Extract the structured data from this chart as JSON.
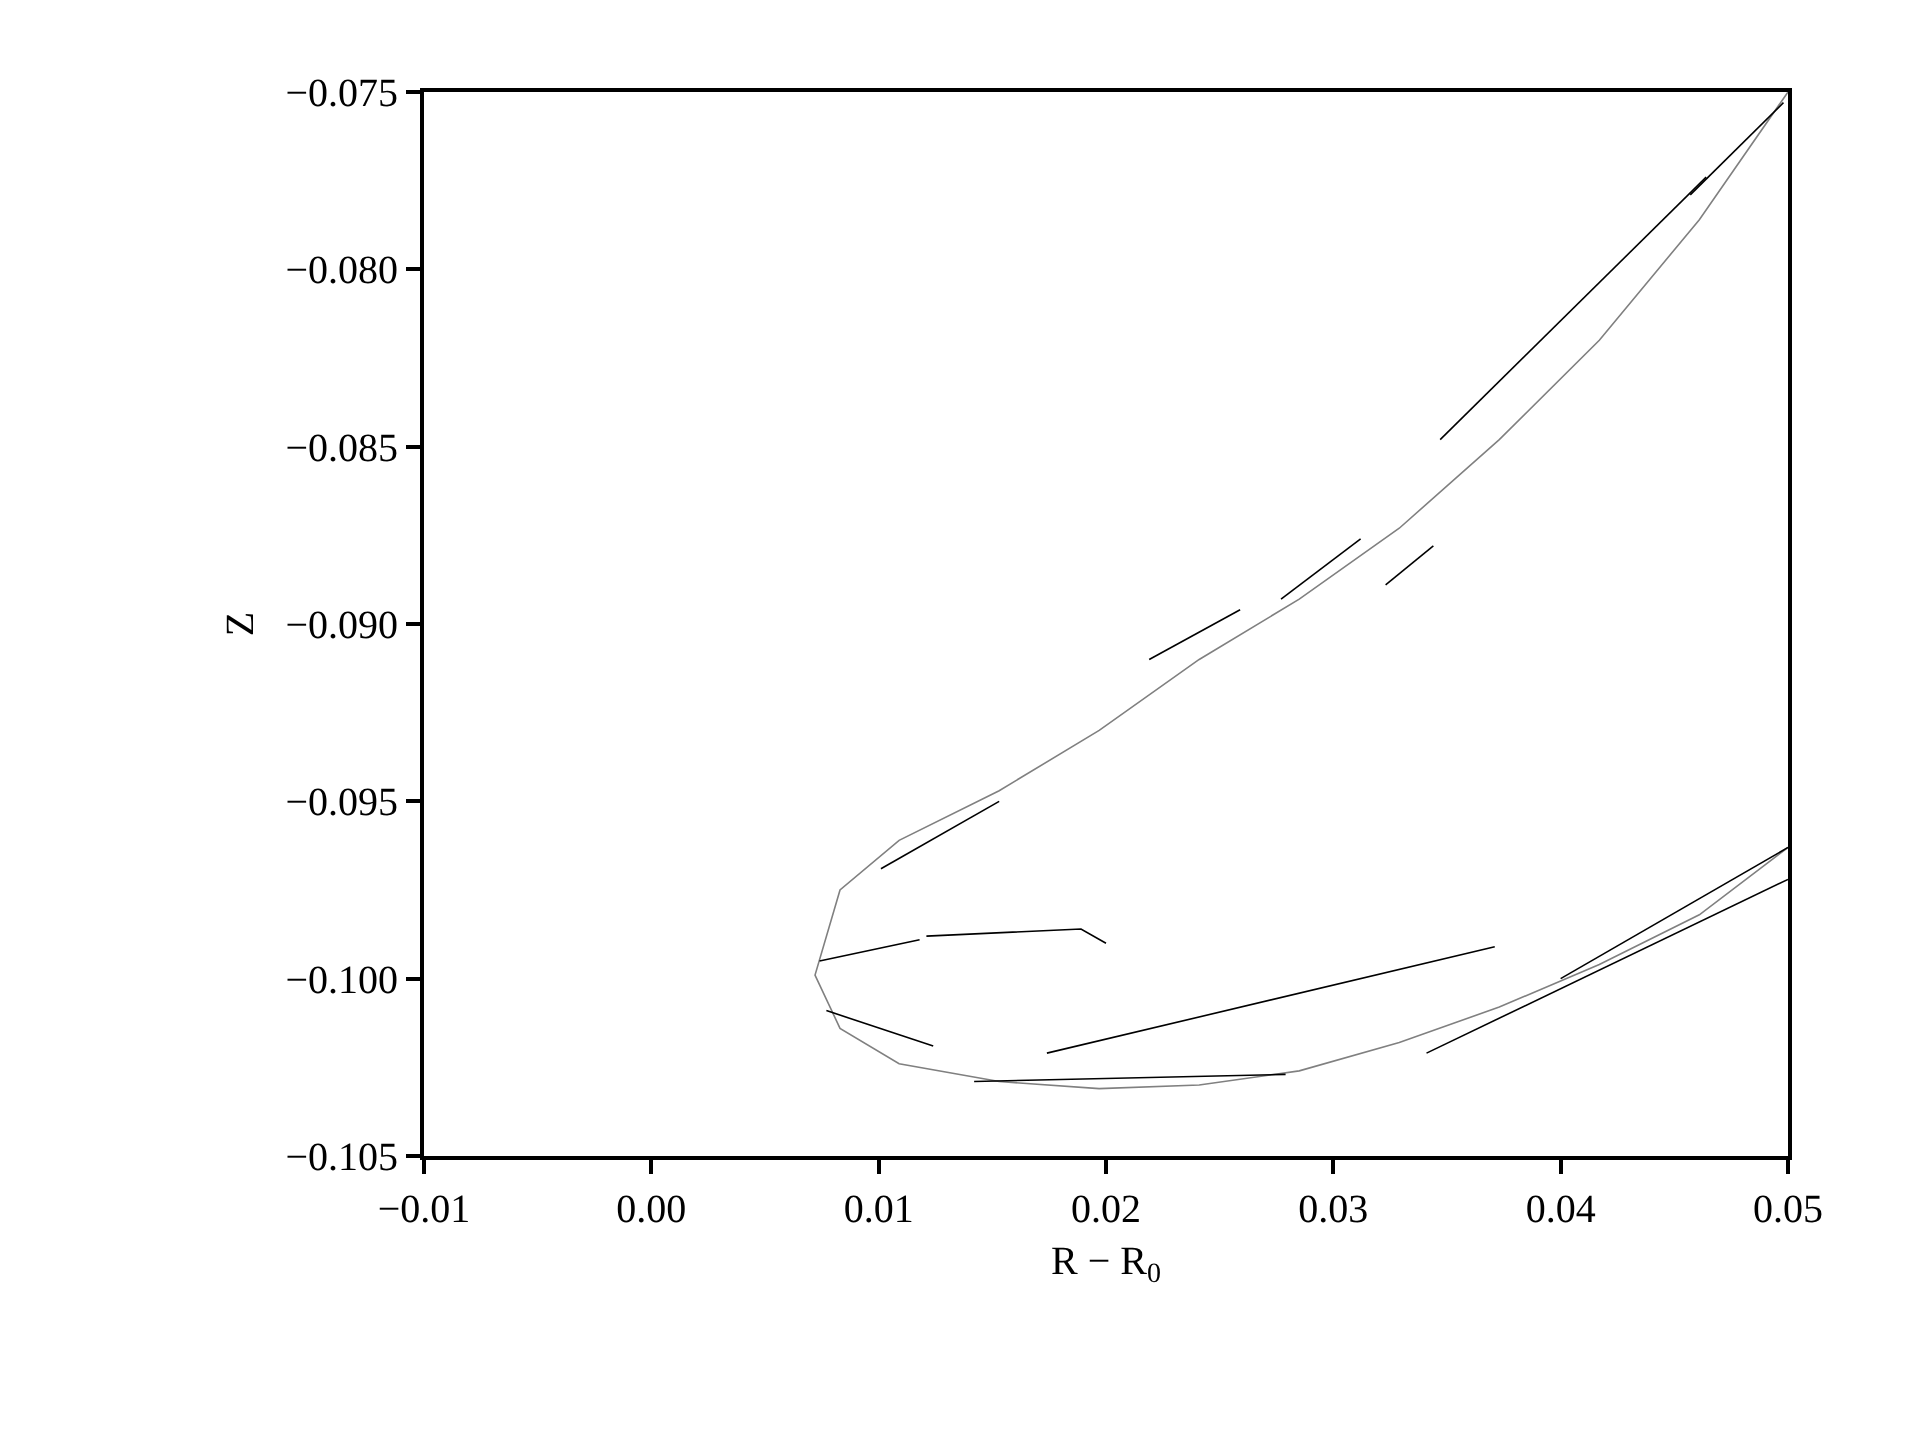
{
  "chart_data": {
    "type": "line",
    "xlabel": "R − R$_{0}$",
    "ylabel": "Z",
    "marker": "none",
    "line_style": "solid",
    "grid": false,
    "xlim": [
      -0.01,
      0.05
    ],
    "ylim": [
      -0.105,
      -0.075
    ],
    "xticks": [
      {
        "value": -0.01,
        "label": "−0.01"
      },
      {
        "value": 0,
        "label": "0.00"
      },
      {
        "value": 0.01,
        "label": "0.01"
      },
      {
        "value": 0.02,
        "label": "0.02"
      },
      {
        "value": 0.03,
        "label": "0.03"
      },
      {
        "value": 0.04,
        "label": "0.04"
      },
      {
        "value": 0.05,
        "label": "0.05"
      }
    ],
    "yticks": [
      {
        "value": -0.105,
        "label": "−0.105"
      },
      {
        "value": -0.1,
        "label": "−0.100"
      },
      {
        "value": -0.095,
        "label": "−0.095"
      },
      {
        "value": -0.09,
        "label": "−0.090"
      },
      {
        "value": -0.085,
        "label": "−0.085"
      },
      {
        "value": -0.08,
        "label": "−0.080"
      },
      {
        "value": -0.075,
        "label": "−0.075"
      }
    ],
    "series": [
      {
        "color": "#808080",
        "x": [
          0.05,
          0.0461,
          0.0417,
          0.0373,
          0.0329,
          0.0285,
          0.0241,
          0.0197,
          0.0153,
          0.0109,
          0.0083,
          0.0072,
          0.0083,
          0.0109,
          0.0153,
          0.0197,
          0.0241,
          0.0285,
          0.0329,
          0.0373,
          0.0417,
          0.0461,
          0.05
        ],
        "values": [
          -0.075,
          -0.0786,
          -0.082,
          -0.0848,
          -0.0873,
          -0.0893,
          -0.091,
          -0.093,
          -0.0947,
          -0.0961,
          -0.0975,
          -0.0999,
          -0.1014,
          -0.1024,
          -0.1029,
          -0.1031,
          -0.103,
          -0.1026,
          -0.1018,
          -0.1008,
          -0.0996,
          -0.0982,
          -0.0963
        ]
      },
      {
        "color": "#000000",
        "x": [
          0.0457,
          0.0498
        ],
        "values": [
          -0.0779,
          -0.0753
        ]
      },
      {
        "color": "#000000",
        "x": [
          0.0347,
          0.0464
        ],
        "values": [
          -0.0848,
          -0.0774
        ]
      },
      {
        "color": "#000000",
        "x": [
          0.0277,
          0.0312
        ],
        "values": [
          -0.0893,
          -0.0876
        ]
      },
      {
        "color": "#000000",
        "x": [
          0.0219,
          0.0259
        ],
        "values": [
          -0.091,
          -0.0896
        ]
      },
      {
        "color": "#000000",
        "x": [
          0.0101,
          0.0153
        ],
        "values": [
          -0.0969,
          -0.095
        ]
      },
      {
        "color": "#000000",
        "x": [
          0.0074,
          0.0118
        ],
        "values": [
          -0.0995,
          -0.0989
        ]
      },
      {
        "color": "#000000",
        "x": [
          0.0121,
          0.0189,
          0.02
        ],
        "values": [
          -0.0988,
          -0.0986,
          -0.099
        ]
      },
      {
        "color": "#000000",
        "x": [
          0.0174,
          0.0371
        ],
        "values": [
          -0.1021,
          -0.0991
        ]
      },
      {
        "color": "#000000",
        "x": [
          0.0077,
          0.0124
        ],
        "values": [
          -0.1009,
          -0.1019
        ]
      },
      {
        "color": "#000000",
        "x": [
          0.0142,
          0.0279
        ],
        "values": [
          -0.1029,
          -0.1027
        ]
      },
      {
        "color": "#000000",
        "x": [
          0.0341,
          0.05
        ],
        "values": [
          -0.1021,
          -0.0972
        ]
      },
      {
        "color": "#000000",
        "x": [
          0.04,
          0.05
        ],
        "values": [
          -0.1,
          -0.0963
        ]
      },
      {
        "color": "#000000",
        "x": [
          0.0323,
          0.0344
        ],
        "values": [
          -0.0889,
          -0.0878
        ]
      }
    ]
  }
}
